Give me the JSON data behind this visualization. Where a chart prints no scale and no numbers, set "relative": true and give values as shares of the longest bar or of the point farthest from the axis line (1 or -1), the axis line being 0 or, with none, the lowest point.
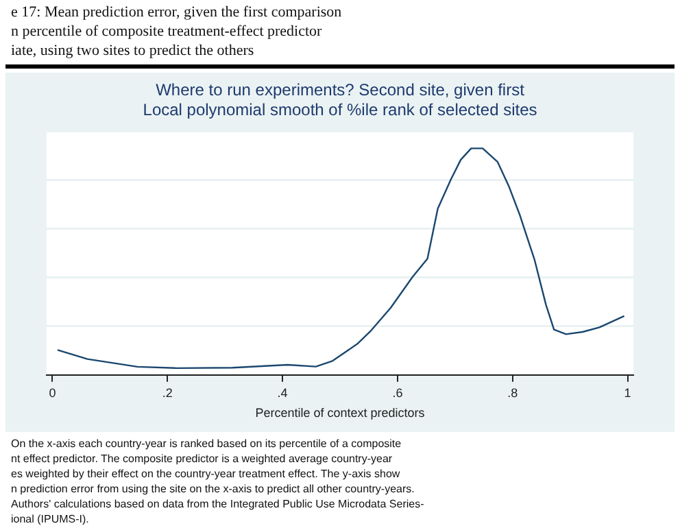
{
  "chart_data": {
    "type": "line",
    "title": "Where to run experiments? Second site, given first",
    "subtitle": "Local polynomial smooth of %ile rank of selected sites",
    "xlabel": "Percentile of context predictors",
    "x": [
      0.009,
      0.061,
      0.148,
      0.217,
      0.313,
      0.409,
      0.458,
      0.487,
      0.53,
      0.554,
      0.588,
      0.626,
      0.652,
      0.67,
      0.693,
      0.71,
      0.728,
      0.748,
      0.774,
      0.794,
      0.812,
      0.838,
      0.858,
      0.872,
      0.893,
      0.922,
      0.951,
      0.994
    ],
    "series": [
      {
        "color": "#1a476f",
        "values": [
          0.11,
          0.07,
          0.036,
          0.03,
          0.032,
          0.045,
          0.037,
          0.062,
          0.137,
          0.196,
          0.296,
          0.432,
          0.513,
          0.734,
          0.864,
          0.95,
          1,
          1,
          0.94,
          0.83,
          0.71,
          0.51,
          0.31,
          0.2,
          0.18,
          0.19,
          0.21,
          0.26
        ]
      }
    ],
    "relative": true,
    "xlim": [
      -0.01,
      1.01
    ],
    "xticks": [
      0,
      {
        "value": 0.2,
        "label": ".2"
      },
      {
        "value": 0.4,
        "label": ".4"
      },
      {
        "value": 0.6,
        "label": ".6"
      },
      {
        "value": 0.8,
        "label": ".8"
      },
      1
    ],
    "grid": "y",
    "annotations": [
      "e 17: Mean prediction error, given the first comparison\nn percentile of composite treatment-effect predictor\niate, using two sites to predict the others",
      "On the x-axis each country-year is ranked based on its percentile of a composite\nnt effect predictor. The composite predictor is a weighted average country-year\nes weighted by their effect on the country-year treatment effect. The y-axis show\nn prediction error from using the site on the x-axis to predict all other country-years.\nAuthors' calculations based on data from the Integrated Public Use Microdata Series-\nional (IPUMS-I)."
    ]
  }
}
